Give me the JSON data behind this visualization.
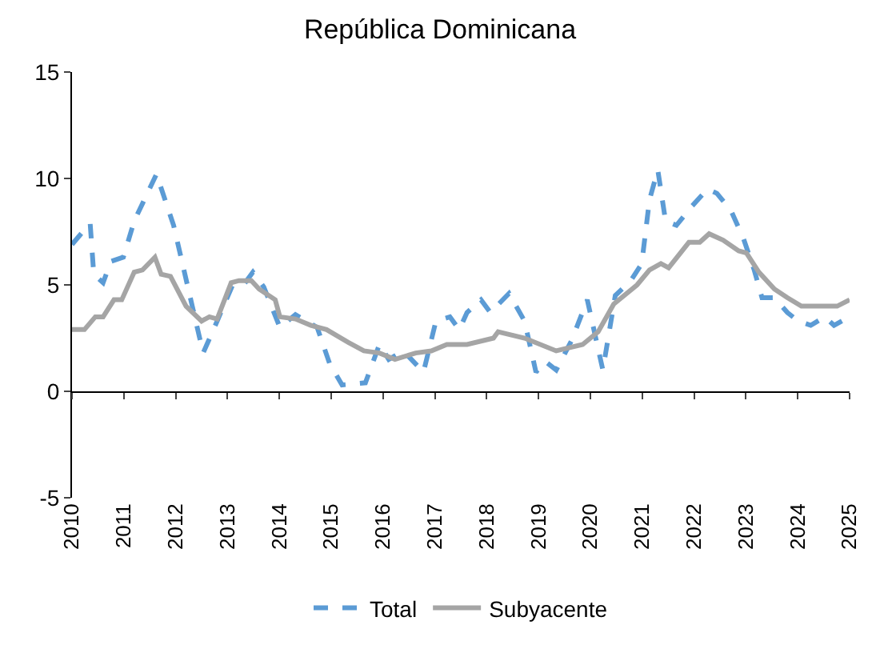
{
  "chart_data": {
    "type": "line",
    "title": "República Dominicana",
    "xlim": [
      2010,
      2025
    ],
    "xticks": [
      2010,
      2011,
      2012,
      2013,
      2014,
      2015,
      2016,
      2017,
      2018,
      2019,
      2020,
      2021,
      2022,
      2023,
      2024,
      2025
    ],
    "ylim": [
      -5,
      15
    ],
    "yticks": [
      -5,
      0,
      5,
      10,
      15
    ],
    "legend": "bottom",
    "series": [
      {
        "name": "Total",
        "color": "#5b9bd5",
        "line_style": "dashed",
        "x": [
          2010.0,
          2010.35,
          2010.42,
          2010.6,
          2010.75,
          2010.99,
          2011.2,
          2011.63,
          2011.96,
          2012.32,
          2012.53,
          2012.8,
          2013.1,
          2013.31,
          2013.49,
          2013.7,
          2014.01,
          2014.31,
          2014.73,
          2014.97,
          2015.21,
          2015.66,
          2015.93,
          2016.11,
          2016.39,
          2016.78,
          2017.02,
          2017.29,
          2017.47,
          2017.62,
          2017.89,
          2018.07,
          2018.43,
          2018.73,
          2018.95,
          2019.13,
          2019.34,
          2019.64,
          2019.94,
          2020.24,
          2020.48,
          2020.78,
          2020.99,
          2021.14,
          2021.3,
          2021.45,
          2021.66,
          2021.96,
          2022.26,
          2022.44,
          2022.71,
          2022.95,
          2023.16,
          2023.31,
          2023.55,
          2023.8,
          2024.01,
          2024.25,
          2024.52,
          2024.7,
          2025.0
        ],
        "values": [
          6.9,
          7.9,
          5.5,
          5.1,
          6.1,
          6.3,
          8.0,
          10.2,
          7.8,
          4.0,
          1.8,
          3.3,
          5.0,
          5.0,
          5.6,
          4.9,
          3.0,
          3.6,
          3.0,
          1.3,
          0.3,
          0.4,
          2.2,
          1.5,
          1.9,
          0.9,
          3.3,
          3.5,
          2.9,
          3.7,
          4.3,
          3.7,
          4.6,
          3.3,
          0.9,
          1.4,
          1.0,
          2.4,
          4.3,
          1.0,
          4.5,
          5.2,
          6.0,
          9.0,
          10.4,
          8.0,
          7.8,
          8.7,
          9.5,
          9.3,
          8.5,
          7.2,
          5.7,
          4.4,
          4.4,
          3.7,
          3.3,
          3.1,
          3.5,
          3.1,
          3.5
        ]
      },
      {
        "name": "Subyacente",
        "color": "#a5a5a5",
        "line_style": "solid",
        "x": [
          2010.0,
          2010.24,
          2010.45,
          2010.6,
          2010.81,
          2010.96,
          2011.2,
          2011.36,
          2011.6,
          2011.72,
          2011.9,
          2012.2,
          2012.5,
          2012.65,
          2012.8,
          2013.07,
          2013.22,
          2013.46,
          2013.61,
          2013.92,
          2014.01,
          2014.31,
          2014.61,
          2014.91,
          2015.33,
          2015.63,
          2015.93,
          2016.23,
          2016.63,
          2016.93,
          2017.23,
          2017.47,
          2017.62,
          2018.13,
          2018.22,
          2018.73,
          2019.34,
          2019.85,
          2020.15,
          2020.45,
          2020.9,
          2021.14,
          2021.36,
          2021.51,
          2021.9,
          2022.11,
          2022.29,
          2022.56,
          2022.86,
          2023.01,
          2023.25,
          2023.55,
          2023.8,
          2024.07,
          2024.46,
          2024.76,
          2025.0
        ],
        "values": [
          2.9,
          2.9,
          3.5,
          3.5,
          4.3,
          4.3,
          5.6,
          5.7,
          6.3,
          5.5,
          5.4,
          4.0,
          3.3,
          3.5,
          3.4,
          5.1,
          5.2,
          5.2,
          4.8,
          4.3,
          3.5,
          3.4,
          3.1,
          2.9,
          2.3,
          1.9,
          1.8,
          1.5,
          1.8,
          1.9,
          2.2,
          2.2,
          2.2,
          2.5,
          2.8,
          2.5,
          1.9,
          2.2,
          2.8,
          4.1,
          5.0,
          5.7,
          6.0,
          5.8,
          7.0,
          7.0,
          7.4,
          7.1,
          6.6,
          6.5,
          5.6,
          4.8,
          4.4,
          4.0,
          4.0,
          4.0,
          4.3
        ]
      }
    ]
  }
}
